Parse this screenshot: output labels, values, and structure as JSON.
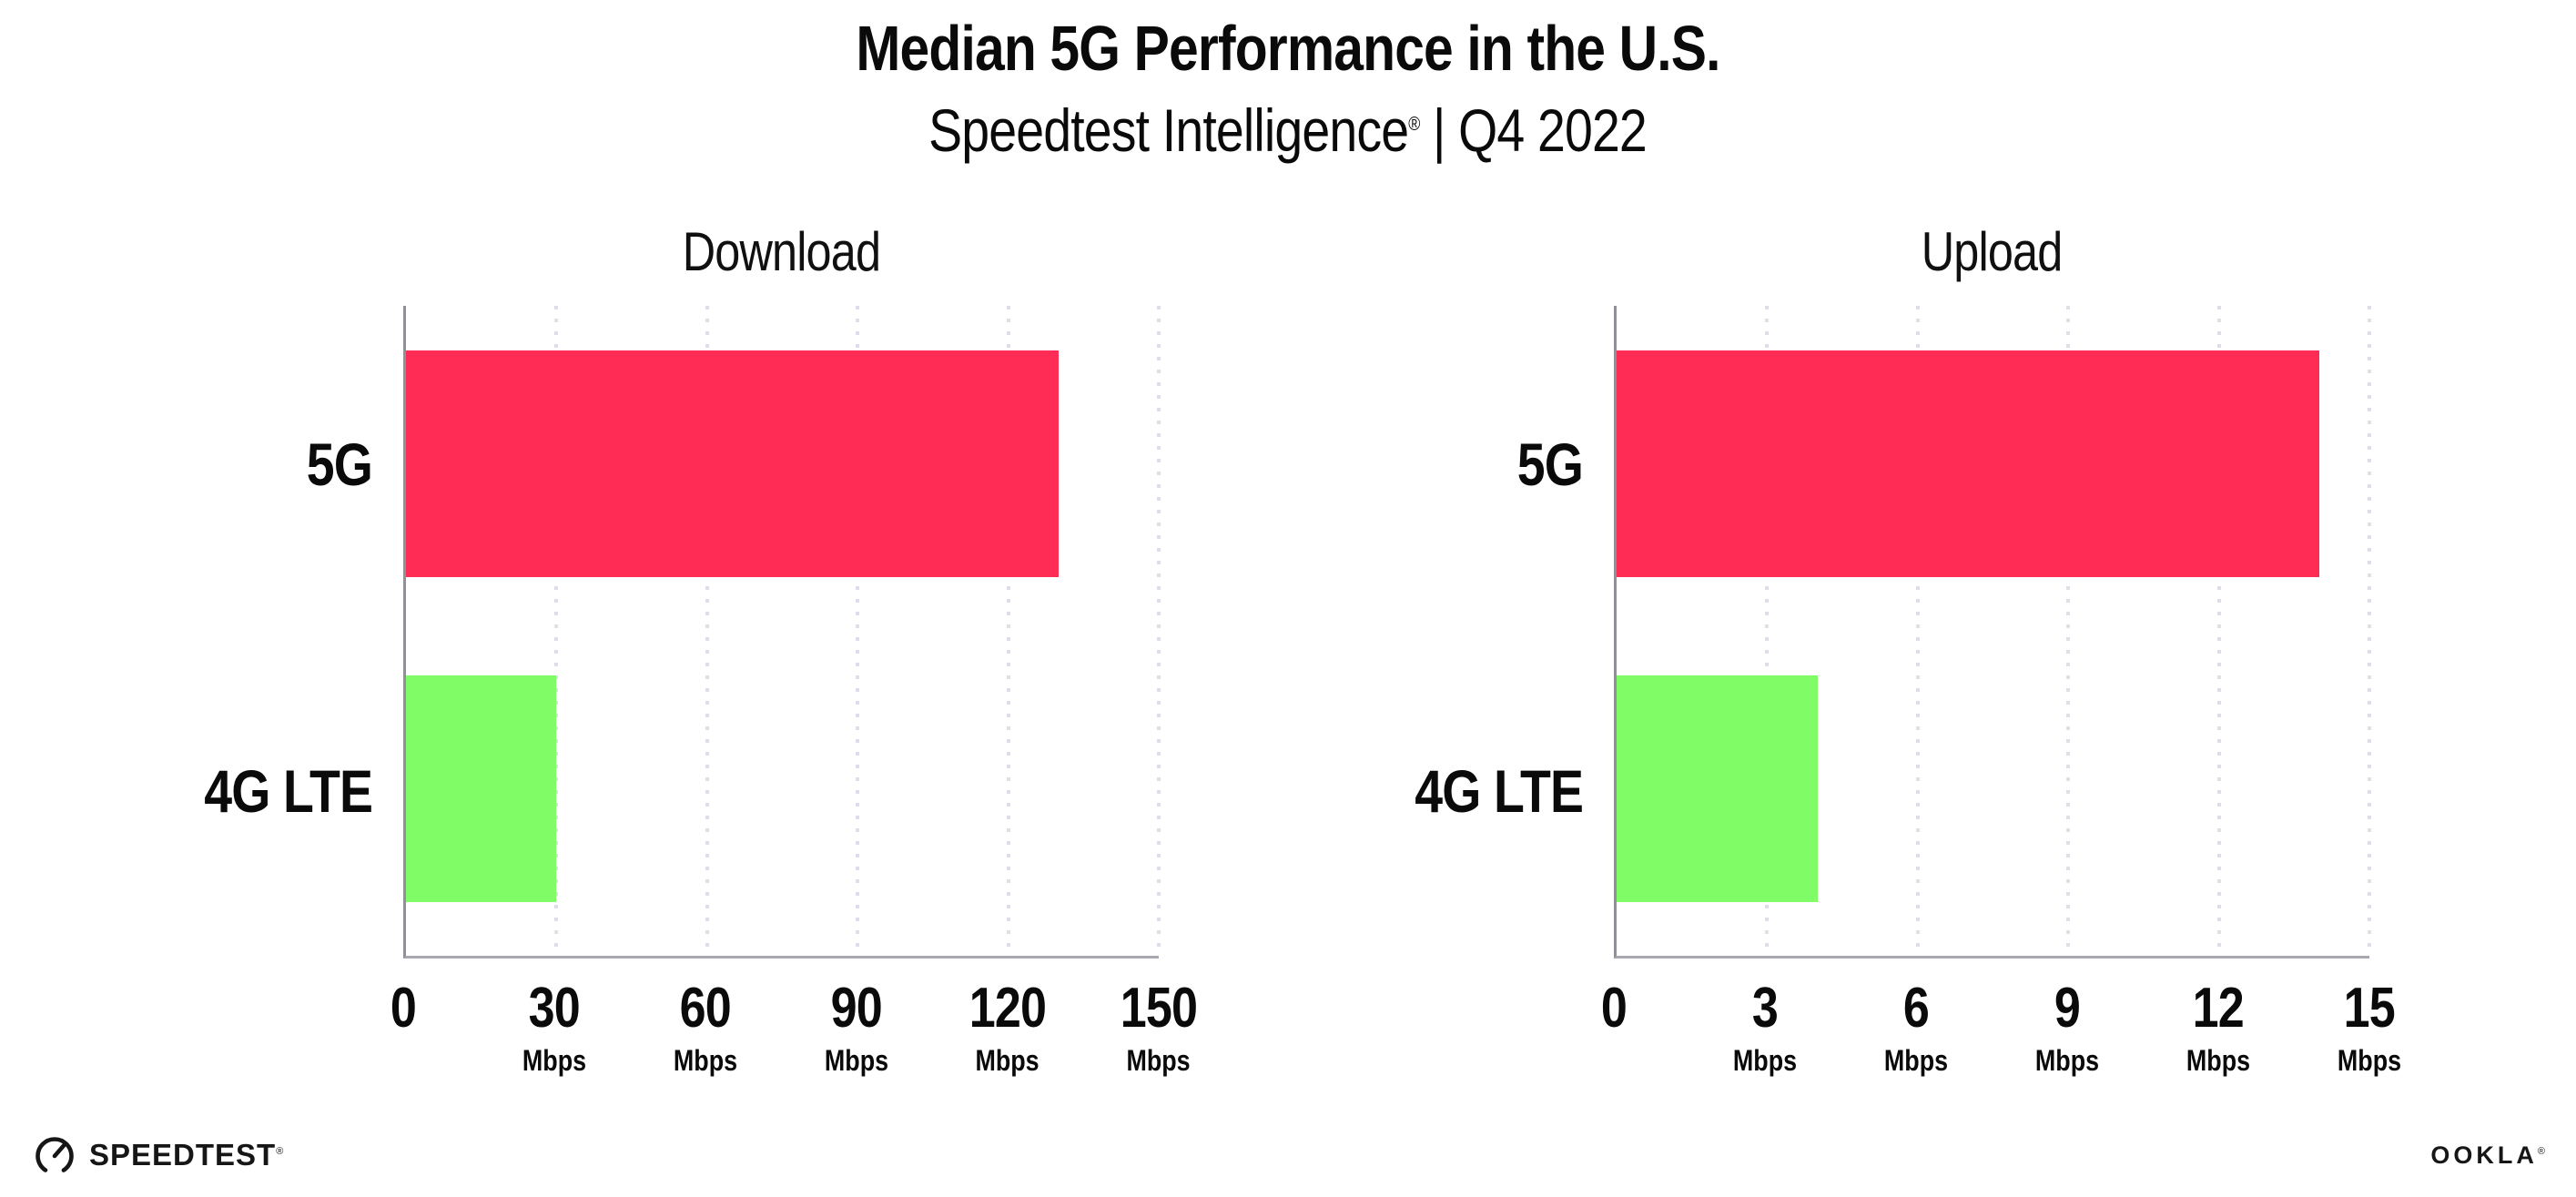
{
  "header": {
    "title": "Median 5G Performance in the U.S.",
    "subtitle": {
      "brand": "Speedtest Intelligence",
      "reg": "®",
      "rest": " | Q4 2022"
    }
  },
  "footer": {
    "speedtest_label": "SPEEDTEST",
    "speedtest_reg": "®",
    "ookla_label": "OOKLA",
    "ookla_reg": "®"
  },
  "colors": {
    "bar_5g": "#FF2D55",
    "bar_4g_lte": "#80FC66",
    "axis_left": "#90909a",
    "axis_bottom": "#a8a8b0",
    "gridline": "#dedeea",
    "text": "#0a0a0a"
  },
  "chart_data": [
    {
      "type": "bar",
      "orientation": "horizontal",
      "title": "Download",
      "categories": [
        "5G",
        "4G LTE"
      ],
      "values": [
        130,
        30
      ],
      "unit": "Mbps",
      "xlabel": "",
      "ylabel": "",
      "xlim": [
        0,
        150
      ],
      "xticks": [
        0,
        30,
        60,
        90,
        120,
        150
      ],
      "grid": true,
      "legend": false,
      "bar_colors": [
        "#FF2D55",
        "#80FC66"
      ]
    },
    {
      "type": "bar",
      "orientation": "horizontal",
      "title": "Upload",
      "categories": [
        "5G",
        "4G LTE"
      ],
      "values": [
        14,
        4
      ],
      "unit": "Mbps",
      "xlabel": "",
      "ylabel": "",
      "xlim": [
        0,
        15
      ],
      "xticks": [
        0,
        3,
        6,
        9,
        12,
        15
      ],
      "grid": true,
      "legend": false,
      "bar_colors": [
        "#FF2D55",
        "#80FC66"
      ]
    }
  ]
}
